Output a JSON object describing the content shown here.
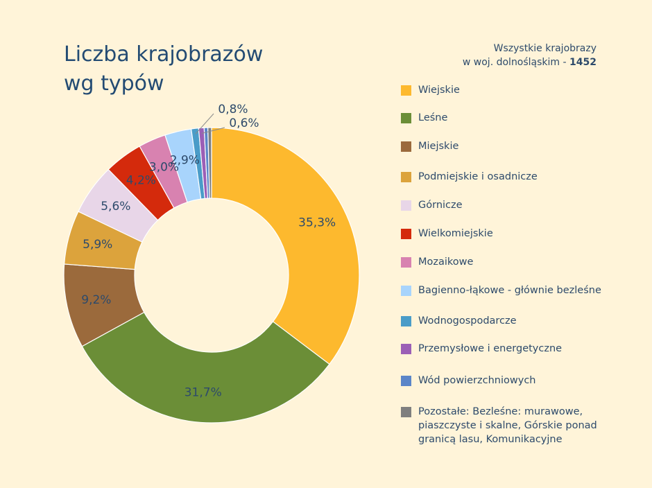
{
  "title_lines": [
    "Liczba krajobrazów",
    "wg typów"
  ],
  "total": {
    "line1": "Wszystkie krajobrazy",
    "line2_prefix": "w woj. dolnośląskim - ",
    "line2_value": "1452"
  },
  "chart_data": {
    "type": "pie",
    "variant": "donut",
    "legend_position": "right",
    "categories": [
      "Wiejskie",
      "Leśne",
      "Miejskie",
      "Podmiejskie i osadnicze",
      "Górnicze",
      "Wielkomiejskie",
      "Mozaikowe",
      "Bagienno-łąkowe - głównie bezleśne",
      "Wodnogospodarcze",
      "Przemysłowe i energetyczne",
      "Wód powierzchniowych",
      "Pozostałe: Bezleśne: murawowe, piaszczyste i skalne, Górskie ponad granicą lasu, Komunikacyjne"
    ],
    "values": [
      35.3,
      31.7,
      9.2,
      5.9,
      5.6,
      4.2,
      3.0,
      2.9,
      0.8,
      0.6,
      0.4,
      0.4
    ],
    "labels": [
      "35,3%",
      "31,7%",
      "9,2%",
      "5,9%",
      "5,6%",
      "4,2%",
      "3,0%",
      "2,9%",
      "0,8%",
      "0,6%",
      "",
      ""
    ],
    "colors": [
      "#fdb92e",
      "#6b8e37",
      "#9b6a3c",
      "#dca33c",
      "#e8d6e8",
      "#d42a0c",
      "#d882b0",
      "#a8d4fc",
      "#4a9cc8",
      "#9b5fb6",
      "#5b85c8",
      "#7f7f7f"
    ]
  }
}
